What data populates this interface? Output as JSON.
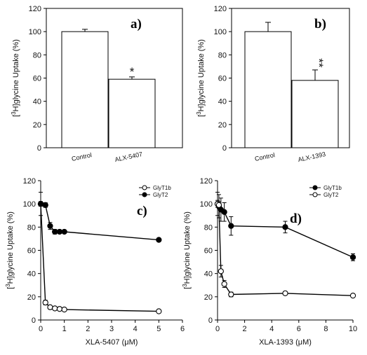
{
  "chart_data": [
    {
      "type": "bar",
      "panel_label": "a)",
      "ylabel": "[³H]glycine Uptake (%)",
      "ylabel_sup": "3",
      "ylim": [
        0,
        120
      ],
      "yticks": [
        0,
        20,
        40,
        60,
        80,
        100,
        120
      ],
      "categories": [
        "Control",
        "ALX-5407"
      ],
      "values": [
        100,
        59
      ],
      "errors": [
        2,
        2
      ],
      "significance": [
        "",
        "*"
      ]
    },
    {
      "type": "bar",
      "panel_label": "b)",
      "ylabel": "[³H]glycine Uptake (%)",
      "ylabel_sup": "3",
      "ylim": [
        0,
        120
      ],
      "yticks": [
        0,
        20,
        40,
        60,
        80,
        100,
        120
      ],
      "categories": [
        "Control",
        "ALX-1393"
      ],
      "values": [
        100,
        58
      ],
      "errors": [
        8,
        9
      ],
      "significance": [
        "",
        "**"
      ]
    },
    {
      "type": "line",
      "panel_label": "c)",
      "ylabel": "[³H]glycine Uptake (%)",
      "ylabel_sup": "3",
      "xlabel": "XLA-5407 (μM)",
      "xlim": [
        0,
        6
      ],
      "xticks": [
        0,
        1,
        2,
        3,
        4,
        5,
        6
      ],
      "ylim": [
        0,
        120
      ],
      "yticks": [
        0,
        20,
        40,
        60,
        80,
        100,
        120
      ],
      "legend_position": "top-right",
      "series": [
        {
          "name": "GlyT1b",
          "marker": "open",
          "x": [
            0,
            0.2,
            0.4,
            0.6,
            0.8,
            1,
            5
          ],
          "y": [
            100,
            15,
            11,
            10,
            9.5,
            9,
            7.5
          ],
          "err": [
            10,
            2,
            1,
            1,
            1,
            1,
            1
          ]
        },
        {
          "name": "GlyT2",
          "marker": "filled",
          "x": [
            0,
            0.2,
            0.4,
            0.6,
            0.8,
            1,
            5
          ],
          "y": [
            100,
            99,
            81,
            76,
            76,
            76,
            69
          ],
          "err": [
            2,
            2,
            3,
            2,
            1,
            1,
            1
          ]
        }
      ]
    },
    {
      "type": "line",
      "panel_label": "d)",
      "ylabel": "[³H]glycine Uptake (%)",
      "ylabel_sup": "3",
      "xlabel": "XLA-1393 (μM)",
      "xlim": [
        0,
        10
      ],
      "xticks": [
        0,
        2,
        4,
        6,
        8,
        10
      ],
      "ylim": [
        0,
        120
      ],
      "yticks": [
        0,
        20,
        40,
        60,
        80,
        100,
        120
      ],
      "legend_position": "top-right",
      "series": [
        {
          "name": "GlyT1b",
          "marker": "filled",
          "x": [
            0,
            0.1,
            0.25,
            0.5,
            1,
            5,
            10
          ],
          "y": [
            100,
            98,
            95,
            93,
            81,
            80,
            54
          ],
          "err": [
            10,
            10,
            10,
            8,
            8,
            5,
            3
          ]
        },
        {
          "name": "GlyT2",
          "marker": "open",
          "x": [
            0,
            0.1,
            0.25,
            0.5,
            1,
            5,
            10
          ],
          "y": [
            100,
            99,
            42,
            31,
            22,
            23,
            21
          ],
          "err": [
            3,
            3,
            5,
            3,
            2,
            1,
            1
          ]
        }
      ]
    }
  ]
}
